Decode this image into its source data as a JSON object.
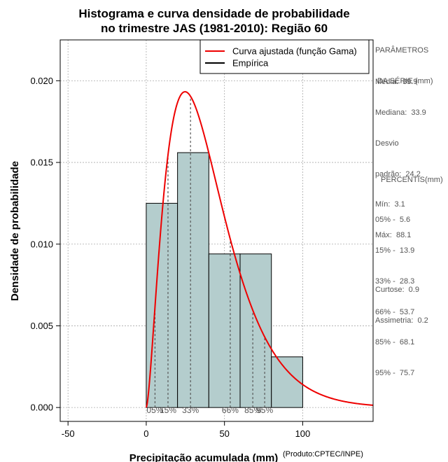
{
  "chart_data": {
    "type": "histogram",
    "title": [
      "Histograma e curva densidade de probabilidade",
      "no trimestre JAS (1981-2010): Região 60"
    ],
    "xlabel": "Precipitação acumulada (mm)",
    "ylabel": "Densidade de probabilidade",
    "credit": "(Produto:CPTEC/INPE)",
    "xlim": [
      -55,
      145
    ],
    "ylim": [
      -0.00085,
      0.0225
    ],
    "xticks": [
      -50,
      0,
      50,
      100
    ],
    "xtick_labels": [
      "-50",
      "0",
      "50",
      "100"
    ],
    "yticks": [
      0,
      0.005,
      0.01,
      0.015,
      0.02
    ],
    "ytick_labels": [
      "0.000",
      "0.005",
      "0.010",
      "0.015",
      "0.020"
    ],
    "grid": true,
    "bins": [
      {
        "start": 0,
        "end": 20,
        "density": 0.0125
      },
      {
        "start": 20,
        "end": 40,
        "density": 0.0156
      },
      {
        "start": 40,
        "end": 60,
        "density": 0.0094
      },
      {
        "start": 60,
        "end": 80,
        "density": 0.0094
      },
      {
        "start": 80,
        "end": 100,
        "density": 0.0031
      }
    ],
    "gamma_fit": {
      "shape": 2.6,
      "scale": 15.5,
      "label": "Curva ajustada (função Gama)"
    },
    "empirical_label": "Empírica",
    "percentile_lines": [
      {
        "label": "05%",
        "x": 5.6
      },
      {
        "label": "15%",
        "x": 13.9
      },
      {
        "label": "33%",
        "x": 28.3
      },
      {
        "label": "66%",
        "x": 53.7
      },
      {
        "label": "85%",
        "x": 68.1
      },
      {
        "label": "95%",
        "x": 75.7
      }
    ],
    "colors": {
      "bar_fill": "#b4cdcd",
      "curve": "#ee0000",
      "grid": "#aaaaaa",
      "percentile": "#555555"
    },
    "legend_position": "top-right"
  },
  "side": {
    "params_title": [
      "PARÂMETROS",
      " DA SÉRIE (mm)"
    ],
    "params": [
      "Média:  39.9",
      "Mediana:  33.9",
      "Desvio",
      "padrão:  24.2",
      "Mín:  3.1",
      "Máx:  88.1"
    ],
    "percentis_title": "PERCENTIS(mm)",
    "percentis": [
      "05% -  5.6",
      "15% -  13.9",
      "33% -  28.3",
      "66% -  53.7",
      "85% -  68.1",
      "95% -  75.7"
    ],
    "shape": [
      "Curtose:  0.9",
      "Assimetria:  0.2"
    ]
  }
}
